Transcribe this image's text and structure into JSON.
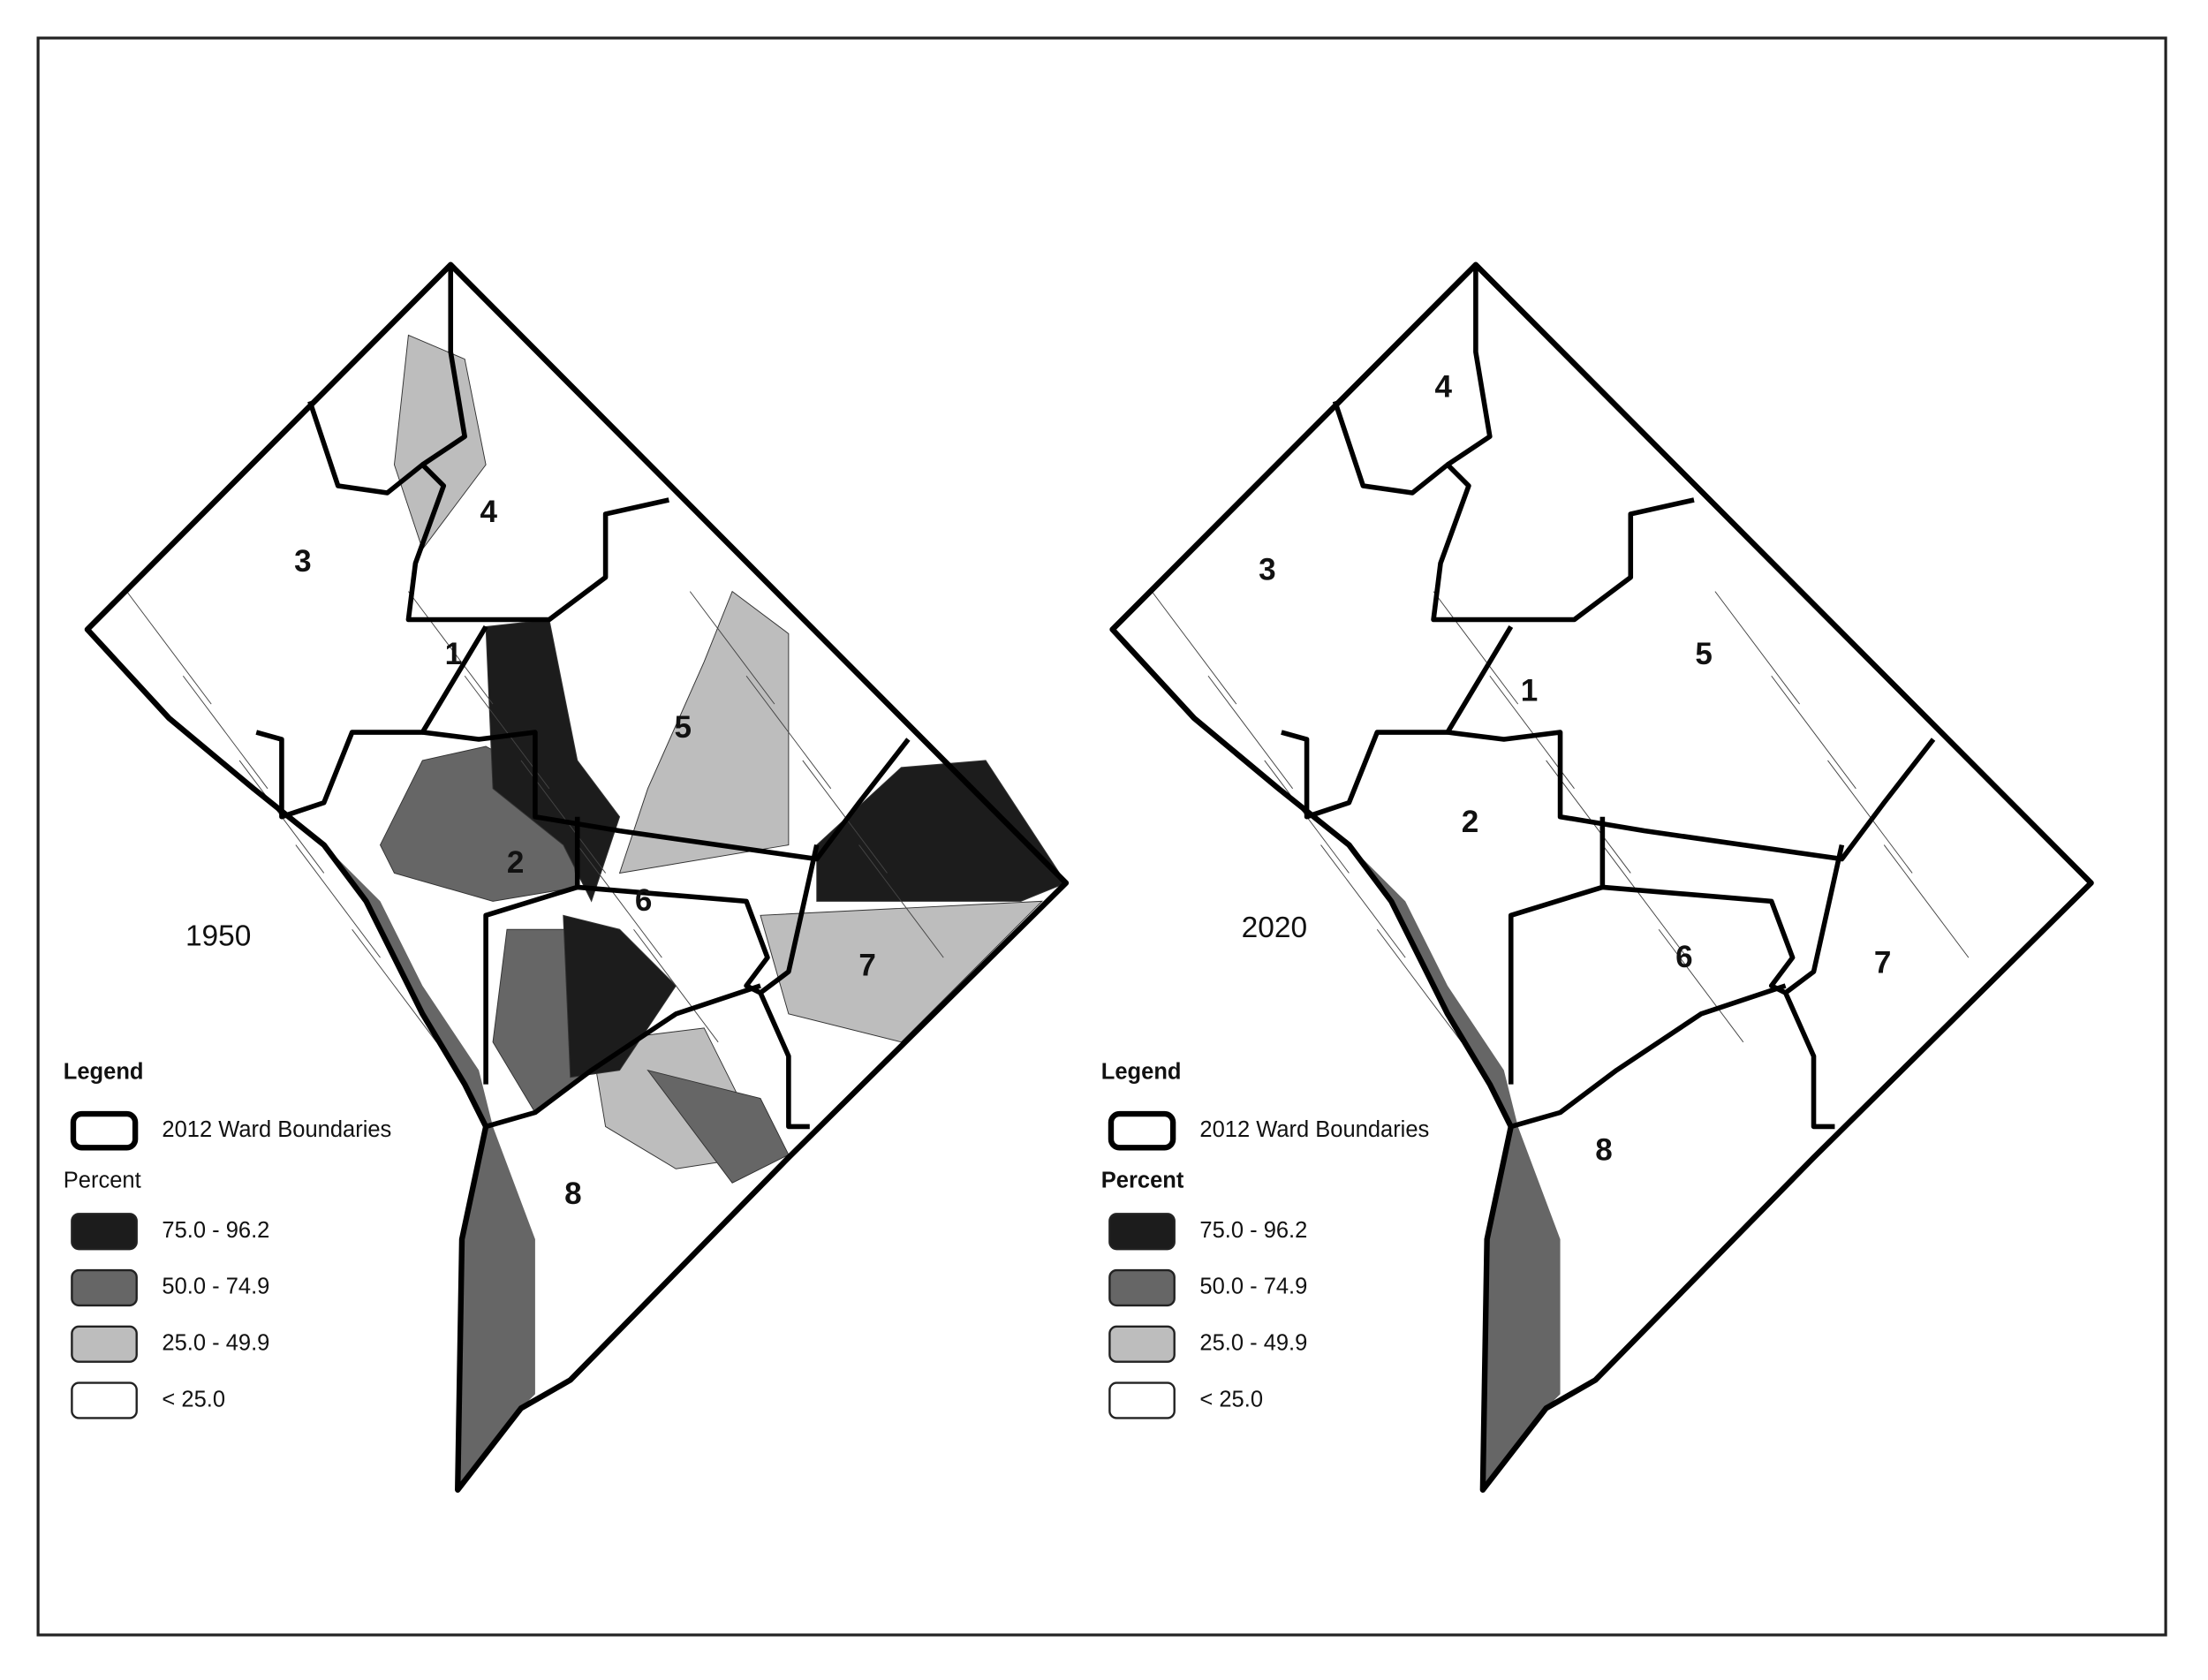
{
  "maps": [
    {
      "year": "1950",
      "wards": [
        "1",
        "2",
        "3",
        "4",
        "5",
        "6",
        "7",
        "8"
      ],
      "legend": {
        "title": "Legend",
        "boundary_label": "2012 Ward Boundaries",
        "percent_title": "Percent",
        "classes": [
          {
            "label": "75.0 - 96.2",
            "color": "#1c1c1c"
          },
          {
            "label": "50.0 - 74.9",
            "color": "#666666"
          },
          {
            "label": "25.0 - 49.9",
            "color": "#bdbdbd"
          },
          {
            "label": "< 25.0",
            "color": "#ffffff"
          }
        ]
      }
    },
    {
      "year": "2020",
      "wards": [
        "1",
        "2",
        "3",
        "4",
        "5",
        "6",
        "7",
        "8"
      ],
      "legend": {
        "title": "Legend",
        "boundary_label": "2012 Ward Boundaries",
        "percent_title": "Percent",
        "classes": [
          {
            "label": "75.0 - 96.2",
            "color": "#1c1c1c"
          },
          {
            "label": "50.0 - 74.9",
            "color": "#666666"
          },
          {
            "label": "25.0 - 49.9",
            "color": "#bdbdbd"
          },
          {
            "label": "< 25.0",
            "color": "#ffffff"
          }
        ]
      }
    }
  ]
}
